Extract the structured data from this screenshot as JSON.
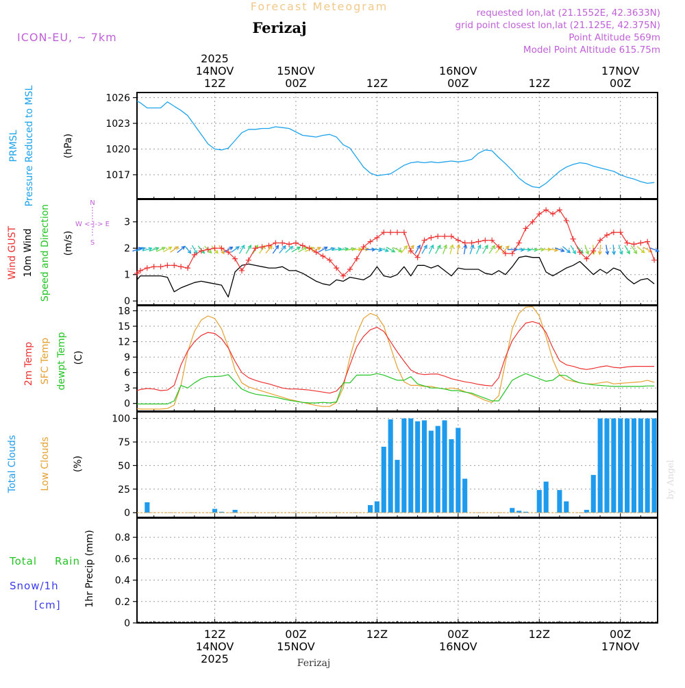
{
  "header": {
    "title": "Forecast Meteogram",
    "location": "Ferizaj",
    "model": "ICON-EU, ~ 7km",
    "requested": "requested lon,lat (21.1552E, 42.3633N)",
    "grid_point": "grid point closest lon,lat (21.125E, 42.375N)",
    "point_altitude": "Point Altitude 569m",
    "model_altitude": "Model Point Altitude 615.75m"
  },
  "colors": {
    "pressure": "#1ca3ec",
    "gust": "#ee3030",
    "wind": "#000000",
    "sfc": "#e6a030",
    "dewpt": "#22c422",
    "clouds": "#1e9bec",
    "low_clouds": "#e6a030",
    "snow": "#3a3aee",
    "model": "#c060d8",
    "title": "#f2c98a"
  },
  "time_axis": {
    "top_labels": [
      {
        "hour": 12,
        "lines": [
          "2025",
          "14NOV",
          "12Z"
        ]
      },
      {
        "hour": 24,
        "lines": [
          "15NOV",
          "00Z"
        ]
      },
      {
        "hour": 36,
        "lines": [
          "12Z"
        ]
      },
      {
        "hour": 48,
        "lines": [
          "16NOV",
          "00Z"
        ]
      },
      {
        "hour": 60,
        "lines": [
          "12Z"
        ]
      },
      {
        "hour": 72,
        "lines": [
          "17NOV",
          "00Z"
        ]
      }
    ],
    "bottom_labels": [
      {
        "hour": 12,
        "lines": [
          "12Z",
          "14NOV",
          "2025"
        ]
      },
      {
        "hour": 24,
        "lines": [
          "00Z",
          "15NOV"
        ]
      },
      {
        "hour": 36,
        "lines": [
          "12Z"
        ]
      },
      {
        "hour": 48,
        "lines": [
          "00Z",
          "16NOV"
        ]
      },
      {
        "hour": 60,
        "lines": [
          "12Z"
        ]
      },
      {
        "hour": 72,
        "lines": [
          "00Z",
          "17NOV"
        ]
      }
    ],
    "footer_location": "Ferizaj",
    "credit": "by Angel"
  },
  "chart_data": [
    {
      "type": "line",
      "id": "pressure",
      "title": "PRMSL Pressure Reduced to MSL",
      "labels": [
        "PRMSL",
        "Pressure Reduced to MSL"
      ],
      "units": "(hPa)",
      "x_unit": "hours since 14NOV 00Z",
      "xlim": [
        0.5,
        77.5
      ],
      "ylim": [
        1014.2,
        1026.6
      ],
      "yticks": [
        "1017",
        "1020",
        "1023",
        "1026"
      ],
      "x": [
        0.5,
        1,
        2,
        3,
        4,
        5,
        6,
        7,
        8,
        9,
        10,
        11,
        12,
        13,
        14,
        15,
        16,
        17,
        18,
        19,
        20,
        21,
        22,
        23,
        24,
        25,
        26,
        27,
        28,
        29,
        30,
        31,
        32,
        33,
        34,
        35,
        36,
        37,
        38,
        39,
        40,
        41,
        42,
        43,
        44,
        45,
        46,
        47,
        48,
        49,
        50,
        51,
        52,
        53,
        54,
        55,
        56,
        57,
        58,
        59,
        60,
        61,
        62,
        63,
        64,
        65,
        66,
        67,
        68,
        69,
        70,
        71,
        72,
        73,
        74,
        75,
        76,
        77
      ],
      "values": [
        1025.6,
        1025.4,
        1024.8,
        1024.8,
        1024.8,
        1025.5,
        1025.0,
        1024.5,
        1023.9,
        1022.8,
        1021.7,
        1020.6,
        1020.0,
        1019.9,
        1020.1,
        1021.0,
        1021.9,
        1022.3,
        1022.3,
        1022.4,
        1022.4,
        1022.6,
        1022.5,
        1022.4,
        1022.0,
        1021.6,
        1021.5,
        1021.4,
        1021.6,
        1021.7,
        1021.4,
        1020.5,
        1020.1,
        1019.0,
        1017.9,
        1017.2,
        1016.9,
        1017.0,
        1017.1,
        1017.6,
        1018.1,
        1018.4,
        1018.5,
        1018.4,
        1018.5,
        1018.4,
        1018.5,
        1018.6,
        1018.5,
        1018.6,
        1018.8,
        1019.5,
        1019.9,
        1019.8,
        1019.0,
        1018.3,
        1017.5,
        1016.6,
        1016.0,
        1015.6,
        1015.5,
        1016.0,
        1016.7,
        1017.4,
        1017.9,
        1018.2,
        1018.4,
        1018.3,
        1018.0,
        1017.8,
        1017.6,
        1017.4,
        1017.0,
        1016.7,
        1016.5,
        1016.2,
        1016.0,
        1016.1
      ]
    },
    {
      "type": "line",
      "id": "wind",
      "title": "Wind GUST / 10m Wind Speed and Direction",
      "labels": [
        "Wind GUST",
        "10m Wind",
        "Speed and Direction"
      ],
      "units": "(m/s)",
      "compass": [
        "N",
        "W <-|-> E",
        "S"
      ],
      "x_unit": "hours since 14NOV 00Z",
      "xlim": [
        0.5,
        77.5
      ],
      "ylim": [
        -0.15,
        3.85
      ],
      "yticks": [
        "0",
        "1",
        "2",
        "3"
      ],
      "x": [
        0.5,
        1,
        2,
        3,
        4,
        5,
        6,
        7,
        8,
        9,
        10,
        11,
        12,
        13,
        14,
        15,
        16,
        17,
        18,
        19,
        20,
        21,
        22,
        23,
        24,
        25,
        26,
        27,
        28,
        29,
        30,
        31,
        32,
        33,
        34,
        35,
        36,
        37,
        38,
        39,
        40,
        41,
        42,
        43,
        44,
        45,
        46,
        47,
        48,
        49,
        50,
        51,
        52,
        53,
        54,
        55,
        56,
        57,
        58,
        59,
        60,
        61,
        62,
        63,
        64,
        65,
        66,
        67,
        68,
        69,
        70,
        71,
        72,
        73,
        74,
        75,
        76,
        77
      ],
      "series": [
        {
          "name": "Wind GUST",
          "values": [
            1.05,
            1.15,
            1.25,
            1.3,
            1.3,
            1.35,
            1.35,
            1.3,
            1.25,
            1.75,
            1.9,
            1.95,
            2.0,
            2.0,
            1.85,
            1.6,
            1.15,
            1.55,
            2.0,
            2.05,
            2.1,
            2.2,
            2.2,
            2.15,
            2.2,
            2.1,
            2.0,
            1.85,
            1.7,
            1.55,
            1.25,
            0.95,
            1.2,
            1.6,
            2.05,
            2.25,
            2.4,
            2.6,
            2.6,
            2.6,
            2.6,
            1.9,
            1.65,
            2.3,
            2.4,
            2.45,
            2.45,
            2.45,
            2.3,
            2.2,
            2.2,
            2.25,
            2.3,
            2.3,
            2.05,
            1.8,
            1.8,
            2.2,
            2.75,
            3.0,
            3.3,
            3.45,
            3.3,
            3.45,
            3.05,
            2.35,
            1.85,
            1.6,
            1.9,
            2.3,
            2.5,
            2.6,
            2.6,
            2.2,
            2.15,
            2.2,
            2.25,
            1.55
          ]
        },
        {
          "name": "10m Wind",
          "values": [
            0.8,
            0.95,
            0.95,
            0.95,
            0.95,
            0.9,
            0.35,
            0.5,
            0.6,
            0.7,
            0.75,
            0.7,
            0.65,
            0.6,
            0.15,
            1.1,
            1.35,
            1.4,
            1.35,
            1.3,
            1.25,
            1.25,
            1.3,
            1.15,
            1.15,
            1.05,
            0.9,
            0.75,
            0.65,
            0.6,
            0.8,
            0.75,
            0.9,
            0.85,
            0.8,
            0.95,
            1.3,
            0.95,
            0.9,
            1.0,
            1.3,
            0.95,
            1.35,
            1.35,
            1.25,
            1.35,
            1.15,
            0.95,
            1.25,
            1.2,
            1.2,
            1.2,
            1.05,
            1.0,
            1.15,
            1.0,
            1.3,
            1.65,
            1.7,
            1.65,
            1.65,
            1.1,
            0.95,
            1.1,
            1.25,
            1.35,
            1.5,
            1.25,
            1.0,
            1.2,
            1.05,
            1.25,
            1.15,
            0.85,
            0.65,
            0.8,
            0.85,
            0.65
          ]
        }
      ],
      "arrows_dir_deg": [
        70,
        70,
        75,
        70,
        65,
        60,
        55,
        50,
        140,
        150,
        140,
        135,
        140,
        150,
        60,
        55,
        30,
        30,
        30,
        35,
        40,
        35,
        40,
        50,
        60,
        60,
        65,
        65,
        60,
        75,
        80,
        80,
        80,
        85,
        85,
        90,
        100,
        110,
        120,
        115,
        40,
        35,
        30,
        30,
        25,
        30,
        20,
        15,
        10,
        10,
        20,
        25,
        30,
        35,
        40,
        45,
        90,
        95,
        95,
        95,
        90,
        90,
        100,
        110,
        130,
        150,
        140,
        160,
        175,
        185,
        170,
        175,
        160,
        150,
        145,
        130,
        120,
        110
      ]
    },
    {
      "type": "line",
      "id": "temperature",
      "title": "2m Temp / SFC Temp / dewpt Temp",
      "labels": [
        "2m Temp",
        "SFC Temp",
        "dewpt Temp"
      ],
      "units": "(C)",
      "x_unit": "hours since 14NOV 00Z",
      "xlim": [
        0.5,
        77.5
      ],
      "ylim": [
        -1.5,
        19.0
      ],
      "yticks": [
        "0",
        "3",
        "6",
        "9",
        "12",
        "15",
        "18"
      ],
      "x": [
        0.5,
        1,
        2,
        3,
        4,
        5,
        6,
        7,
        8,
        9,
        10,
        11,
        12,
        13,
        14,
        15,
        16,
        17,
        18,
        19,
        20,
        21,
        22,
        23,
        24,
        25,
        26,
        27,
        28,
        29,
        30,
        31,
        32,
        33,
        34,
        35,
        36,
        37,
        38,
        39,
        40,
        41,
        42,
        43,
        44,
        45,
        46,
        47,
        48,
        49,
        50,
        51,
        52,
        53,
        54,
        55,
        56,
        57,
        58,
        59,
        60,
        61,
        62,
        63,
        64,
        65,
        66,
        67,
        68,
        69,
        70,
        71,
        72,
        73,
        74,
        75,
        76,
        77
      ],
      "series": [
        {
          "name": "2m Temp",
          "values": [
            2.5,
            2.7,
            2.9,
            2.8,
            2.5,
            2.6,
            3.5,
            7.5,
            10.2,
            12.0,
            13.2,
            13.8,
            13.6,
            12.6,
            10.8,
            8.2,
            6.0,
            5.0,
            4.5,
            4.1,
            3.8,
            3.4,
            3.0,
            2.8,
            2.8,
            2.7,
            2.6,
            2.4,
            2.2,
            2.0,
            2.4,
            3.8,
            7.5,
            11.0,
            13.0,
            14.3,
            14.8,
            14.0,
            12.0,
            10.0,
            8.2,
            6.5,
            5.8,
            5.6,
            5.7,
            5.7,
            5.3,
            4.8,
            4.5,
            4.2,
            4.0,
            3.7,
            3.5,
            3.4,
            5.0,
            9.0,
            12.2,
            14.1,
            15.6,
            15.9,
            15.5,
            13.8,
            10.8,
            8.3,
            7.5,
            7.2,
            6.8,
            6.6,
            6.8,
            7.1,
            7.3,
            7.0,
            6.9,
            7.1,
            7.2,
            7.2,
            7.2,
            7.2
          ]
        },
        {
          "name": "SFC Temp",
          "values": [
            -1.0,
            -1.1,
            -1.1,
            -1.1,
            -1.1,
            -1.0,
            -0.3,
            3.5,
            10.0,
            14.0,
            16.2,
            17.0,
            16.5,
            14.5,
            11.0,
            6.5,
            4.0,
            3.2,
            2.8,
            2.4,
            2.0,
            1.6,
            1.2,
            0.8,
            0.5,
            0.2,
            -0.1,
            -0.4,
            -0.6,
            -0.6,
            0.2,
            3.0,
            9.0,
            13.5,
            16.5,
            17.5,
            17.0,
            15.0,
            11.0,
            7.0,
            4.2,
            3.5,
            3.5,
            3.3,
            3.3,
            3.0,
            2.8,
            3.0,
            2.8,
            2.3,
            1.8,
            1.2,
            0.6,
            0.2,
            1.5,
            8.0,
            14.5,
            17.5,
            18.7,
            18.8,
            17.0,
            13.0,
            8.5,
            5.5,
            4.6,
            4.3,
            4.0,
            3.8,
            3.8,
            4.0,
            4.2,
            3.8,
            3.9,
            4.0,
            4.1,
            4.2,
            4.5,
            4.1
          ]
        },
        {
          "name": "dewpt Temp",
          "values": [
            -0.1,
            -0.1,
            -0.1,
            -0.1,
            -0.1,
            -0.1,
            0.5,
            3.5,
            3.0,
            4.0,
            4.8,
            5.2,
            5.2,
            5.3,
            5.6,
            4.2,
            2.8,
            2.2,
            1.8,
            1.6,
            1.4,
            1.2,
            0.9,
            0.6,
            0.4,
            0.2,
            0.1,
            0.1,
            0.2,
            0.1,
            0.3,
            4.0,
            4.0,
            5.5,
            5.5,
            5.5,
            5.8,
            5.5,
            5.0,
            4.5,
            4.5,
            5.2,
            3.8,
            3.4,
            3.0,
            3.0,
            2.8,
            2.5,
            2.5,
            2.2,
            2.0,
            1.5,
            1.0,
            0.5,
            0.5,
            2.5,
            4.5,
            5.2,
            5.8,
            5.3,
            4.8,
            4.3,
            4.5,
            5.5,
            5.4,
            4.5,
            4.0,
            3.8,
            3.6,
            3.5,
            3.4,
            3.3,
            3.3,
            3.3,
            3.3,
            3.3,
            3.4,
            3.4
          ]
        }
      ]
    },
    {
      "type": "bar",
      "id": "clouds",
      "title": "Total Clouds / Low Clouds",
      "labels": [
        "Total Clouds",
        "Low Clouds"
      ],
      "units": "(%)",
      "x_unit": "hours since 14NOV 00Z",
      "xlim": [
        0.5,
        77.5
      ],
      "ylim": [
        -5,
        107
      ],
      "yticks": [
        "0",
        "25",
        "50",
        "75",
        "100"
      ],
      "x": [
        1,
        2,
        3,
        4,
        5,
        6,
        7,
        8,
        9,
        10,
        11,
        12,
        13,
        14,
        15,
        16,
        17,
        18,
        19,
        20,
        21,
        22,
        23,
        24,
        25,
        26,
        27,
        28,
        29,
        30,
        31,
        32,
        33,
        34,
        35,
        36,
        37,
        38,
        39,
        40,
        41,
        42,
        43,
        44,
        45,
        46,
        47,
        48,
        49,
        50,
        51,
        52,
        53,
        54,
        55,
        56,
        57,
        58,
        59,
        60,
        61,
        62,
        63,
        64,
        65,
        66,
        67,
        68,
        69,
        70,
        71,
        72,
        73,
        74,
        75,
        76,
        77
      ],
      "values": [
        0,
        11,
        0,
        0,
        0,
        0,
        0,
        0,
        0,
        0,
        0,
        4,
        1,
        0,
        3,
        0,
        0,
        0,
        0,
        0,
        0,
        0,
        0,
        0,
        0,
        0,
        0,
        0,
        0,
        0,
        0,
        0,
        0,
        0,
        8,
        12,
        70,
        99,
        56,
        100,
        100,
        97,
        98,
        87,
        92,
        98,
        78,
        90,
        36,
        0,
        0,
        0,
        0,
        0,
        0,
        5,
        2,
        1,
        0,
        24,
        33,
        0,
        24,
        12,
        0,
        0,
        3,
        40,
        100,
        100,
        100,
        100,
        100,
        100,
        100,
        100,
        100
      ]
    },
    {
      "type": "bar",
      "id": "precip",
      "title": "1hr Precip (mm)",
      "labels": [
        "Total",
        "Rain",
        "Snow/1h",
        "[cm]"
      ],
      "units": "1hr Precip (mm)",
      "x_unit": "hours since 14NOV 00Z",
      "xlim": [
        0.5,
        77.5
      ],
      "ylim": [
        0,
        0.98
      ],
      "yticks": [
        "0",
        "0.2",
        "0.4",
        "0.6",
        "0.8"
      ],
      "x": [],
      "values": []
    }
  ]
}
